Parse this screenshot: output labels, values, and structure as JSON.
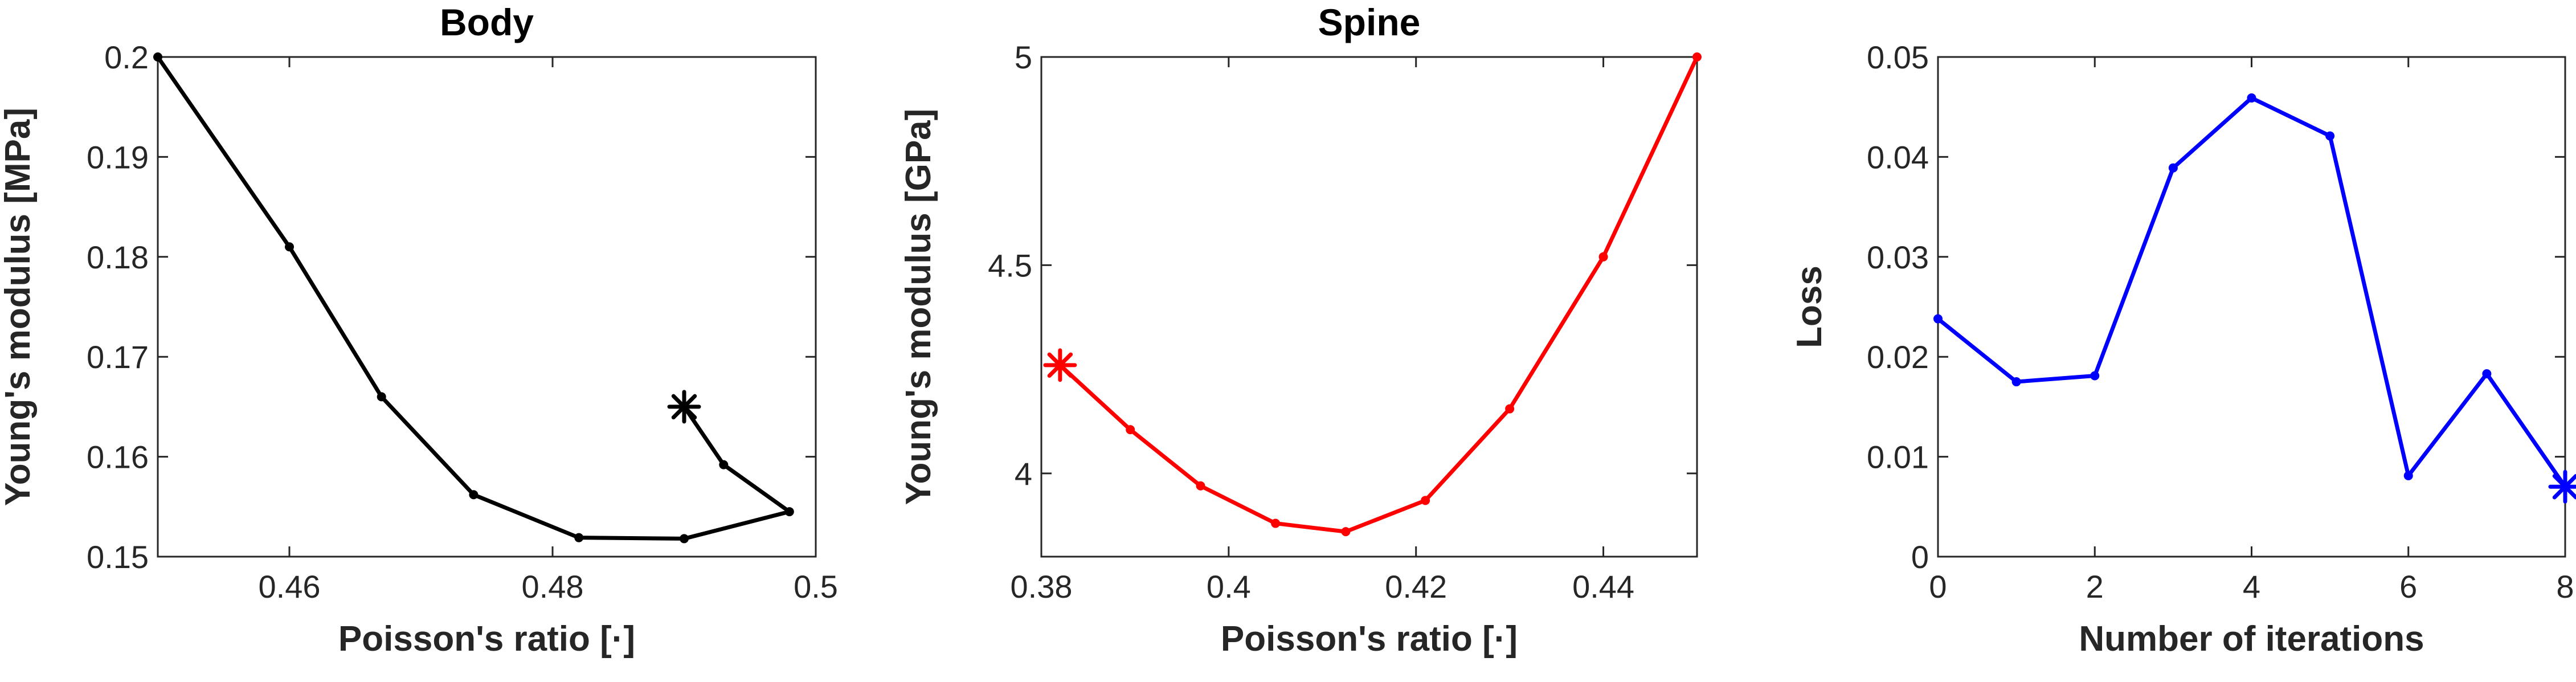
{
  "chart_data": [
    {
      "type": "line",
      "title": "Body",
      "xlabel": "Poisson's ratio [·]",
      "ylabel": "Young's modulus [MPa]",
      "xlim": [
        0.45,
        0.5
      ],
      "ylim": [
        0.15,
        0.2
      ],
      "xticks": [
        0.46,
        0.48,
        0.5
      ],
      "xtick_labels": [
        "0.46",
        "0.48",
        "0.5"
      ],
      "yticks": [
        0.15,
        0.16,
        0.17,
        0.18,
        0.19,
        0.2
      ],
      "ytick_labels": [
        "0.15",
        "0.16",
        "0.17",
        "0.18",
        "0.19",
        "0.2"
      ],
      "color": "#000000",
      "x": [
        0.45,
        0.46,
        0.467,
        0.474,
        0.482,
        0.49,
        0.498,
        0.493,
        0.49
      ],
      "y": [
        0.2,
        0.181,
        0.166,
        0.1562,
        0.1519,
        0.1518,
        0.1545,
        0.1592,
        0.165
      ],
      "final_marker": "asterisk"
    },
    {
      "type": "line",
      "title": "Spine",
      "xlabel": "Poisson's ratio [·]",
      "ylabel": "Young's modulus [GPa]",
      "xlim": [
        0.38,
        0.45
      ],
      "ylim": [
        3.8,
        5.0
      ],
      "xticks": [
        0.38,
        0.4,
        0.42,
        0.44
      ],
      "xtick_labels": [
        "0.38",
        "0.4",
        "0.42",
        "0.44"
      ],
      "yticks": [
        4.0,
        4.5,
        5.0
      ],
      "ytick_labels": [
        "4",
        "4.5",
        "5"
      ],
      "color": "#ff0000",
      "x": [
        0.45,
        0.44,
        0.43,
        0.421,
        0.4125,
        0.405,
        0.397,
        0.3895,
        0.382
      ],
      "y": [
        5.0,
        4.52,
        4.155,
        3.935,
        3.86,
        3.88,
        3.97,
        4.105,
        4.26
      ],
      "final_marker": "asterisk"
    },
    {
      "type": "line",
      "title": "",
      "xlabel": "Number of iterations",
      "ylabel": "Loss",
      "xlim": [
        0,
        8
      ],
      "ylim": [
        0,
        0.05
      ],
      "xticks": [
        0,
        2,
        4,
        6,
        8
      ],
      "xtick_labels": [
        "0",
        "2",
        "4",
        "6",
        "8"
      ],
      "yticks": [
        0,
        0.01,
        0.02,
        0.03,
        0.04,
        0.05
      ],
      "ytick_labels": [
        "0",
        "0.01",
        "0.02",
        "0.03",
        "0.04",
        "0.05"
      ],
      "color": "#0000ff",
      "x": [
        0,
        1,
        2,
        3,
        4,
        5,
        6,
        7,
        8
      ],
      "y": [
        0.0238,
        0.0175,
        0.0181,
        0.0389,
        0.0459,
        0.0421,
        0.0081,
        0.0183,
        0.007
      ],
      "final_marker": "asterisk"
    }
  ]
}
